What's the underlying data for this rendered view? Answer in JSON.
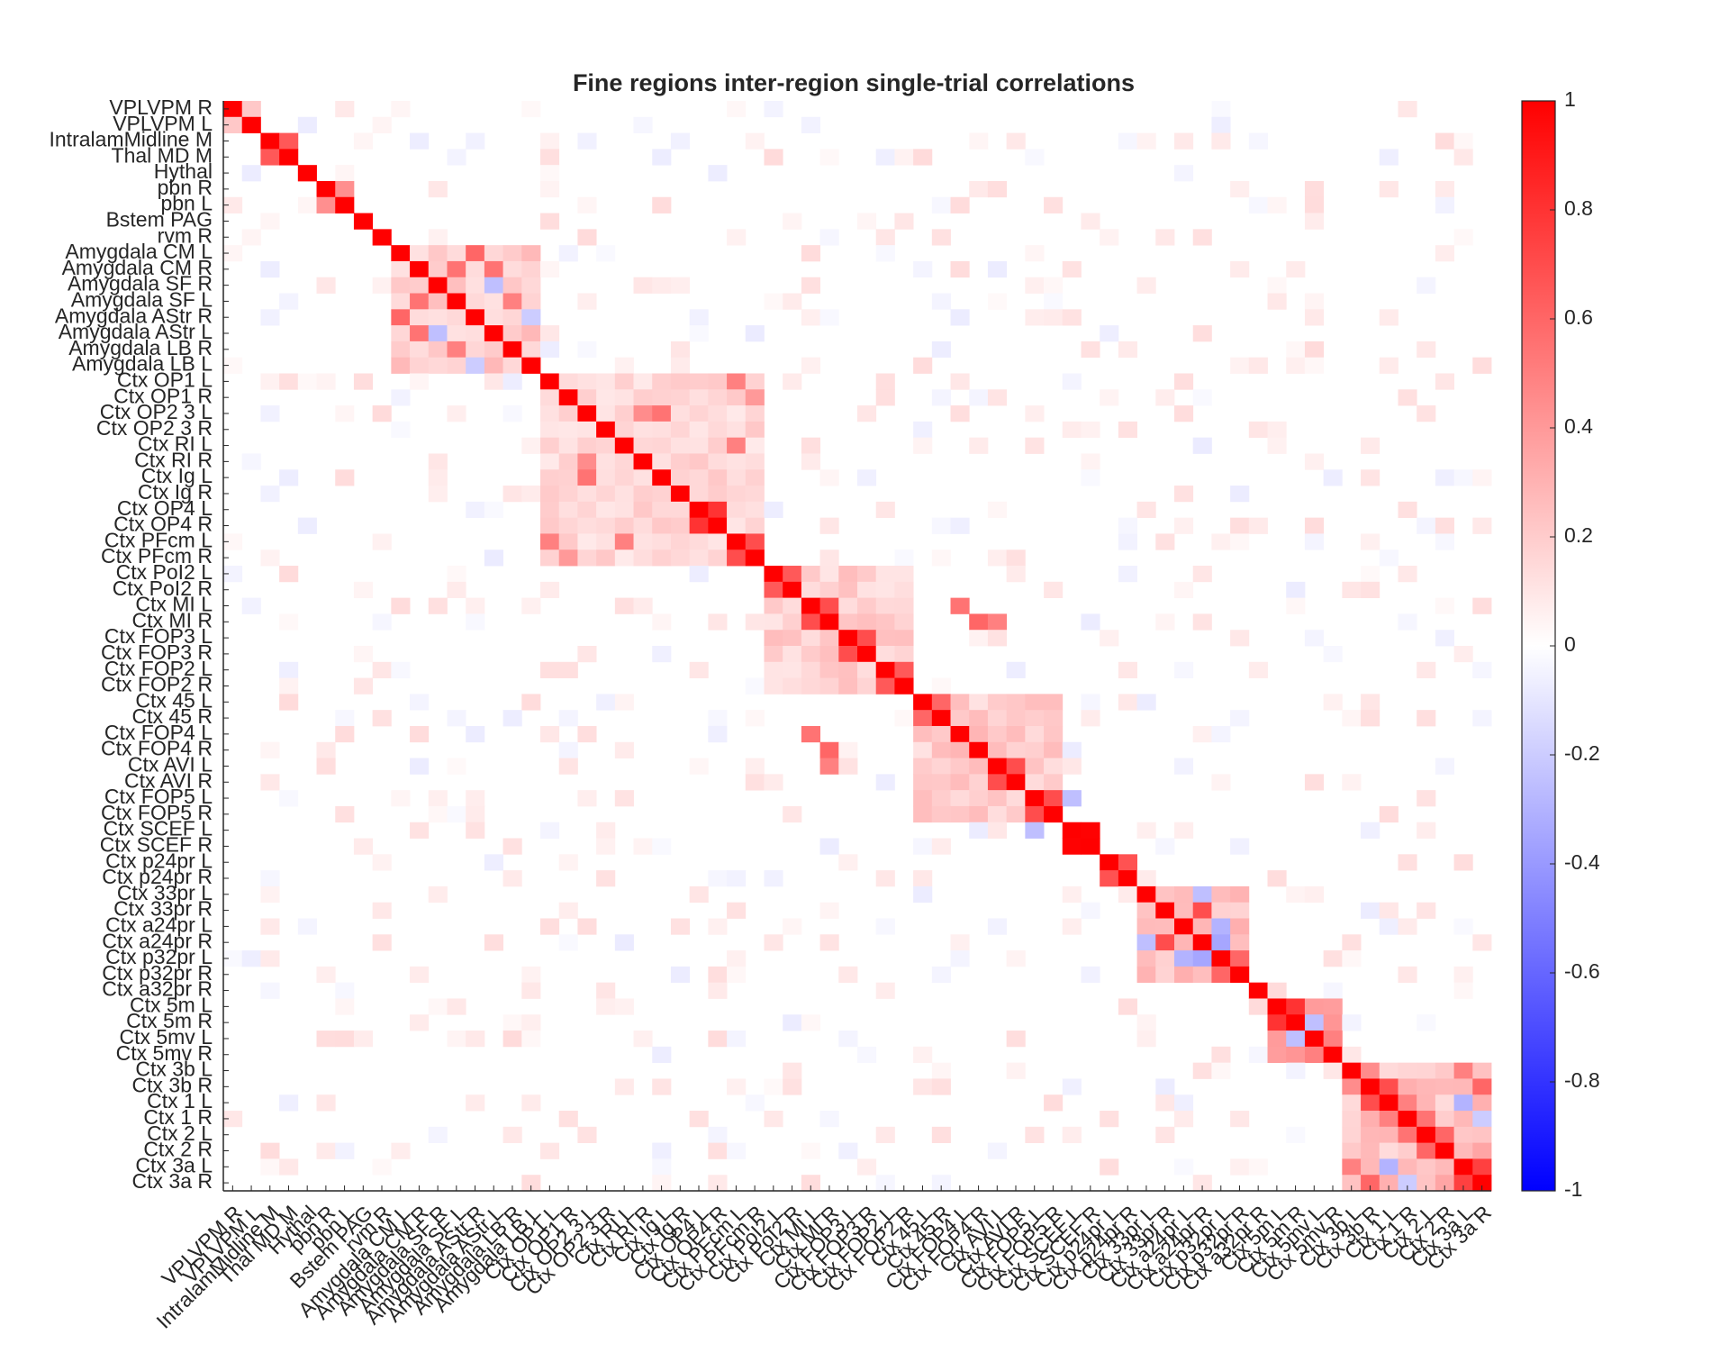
{
  "chart_data": {
    "type": "heatmap",
    "title": "Fine regions inter-region single-trial correlations",
    "xlabel": "",
    "ylabel": "",
    "labels": [
      "VPLVPM R",
      "VPLVPM L",
      "IntralamMidline M",
      "Thal MD M",
      "Hythal",
      "pbn R",
      "pbn L",
      "Bstem PAG",
      "rvm R",
      "Amygdala CM  L",
      "Amygdala CM  R",
      "Amygdala SF  R",
      "Amygdala SF  L",
      "Amygdala AStr  R",
      "Amygdala AStr  L",
      "Amygdala LB  R",
      "Amygdala LB  L",
      "Ctx OP1 L",
      "Ctx OP1 R",
      "Ctx OP2 3 L",
      "Ctx OP2 3 R",
      "Ctx RI L",
      "Ctx RI R",
      "Ctx Ig L",
      "Ctx Ig R",
      "Ctx OP4 L",
      "Ctx OP4 R",
      "Ctx PFcm L",
      "Ctx PFcm R",
      "Ctx PoI2 L",
      "Ctx PoI2 R",
      "Ctx MI L",
      "Ctx MI R",
      "Ctx FOP3 L",
      "Ctx FOP3 R",
      "Ctx FOP2 L",
      "Ctx FOP2 R",
      "Ctx 45 L",
      "Ctx 45 R",
      "Ctx FOP4 L",
      "Ctx FOP4 R",
      "Ctx AVI L",
      "Ctx AVI R",
      "Ctx FOP5 L",
      "Ctx FOP5 R",
      "Ctx SCEF L",
      "Ctx SCEF R",
      "Ctx p24pr L",
      "Ctx p24pr R",
      "Ctx 33pr L",
      "Ctx 33pr R",
      "Ctx a24pr L",
      "Ctx a24pr R",
      "Ctx p32pr L",
      "Ctx p32pr R",
      "Ctx a32pr R",
      "Ctx 5m L",
      "Ctx 5m R",
      "Ctx 5mv L",
      "Ctx 5mv R",
      "Ctx 3b L",
      "Ctx 3b R",
      "Ctx 1 L",
      "Ctx 1 R",
      "Ctx 2 L",
      "Ctx 2 R",
      "Ctx 3a L",
      "Ctx 3a R"
    ],
    "clim": [
      -1,
      1
    ],
    "colorbar_ticks": [
      "1",
      "0.8",
      "0.6",
      "0.4",
      "0.2",
      "0",
      "-0.2",
      "-0.4",
      "-0.6",
      "-0.8",
      "-1"
    ],
    "colormap": {
      "low": "#0000ff",
      "mid": "#ffffff",
      "high": "#ff0000"
    },
    "diagonal": 1,
    "blocks": [
      {
        "rows": [
          0,
          1
        ],
        "value": 0.3
      },
      {
        "rows": [
          2,
          3
        ],
        "value": 0.8
      },
      {
        "rows": [
          5,
          6
        ],
        "value": 0.7
      },
      {
        "rows": [
          9,
          16
        ],
        "value": 0.2
      },
      {
        "rows": [
          17,
          28
        ],
        "value": 0.15
      },
      {
        "rows": [
          29,
          36
        ],
        "value": 0.18
      },
      {
        "rows": [
          37,
          44
        ],
        "value": 0.2
      },
      {
        "rows": [
          45,
          46
        ],
        "value": 0.85
      },
      {
        "rows": [
          47,
          48
        ],
        "value": 0.8
      },
      {
        "rows": [
          49,
          54
        ],
        "value": 0.25
      },
      {
        "rows": [
          56,
          59
        ],
        "value": 0.35
      },
      {
        "rows": [
          60,
          67
        ],
        "value": 0.25
      }
    ],
    "cells": [
      {
        "row": 9,
        "col": 13,
        "value": 0.6
      },
      {
        "row": 10,
        "col": 12,
        "value": 0.55
      },
      {
        "row": 10,
        "col": 14,
        "value": 0.55
      },
      {
        "row": 11,
        "col": 14,
        "value": -0.25
      },
      {
        "row": 12,
        "col": 15,
        "value": 0.5
      },
      {
        "row": 13,
        "col": 16,
        "value": -0.2
      },
      {
        "row": 17,
        "col": 27,
        "value": 0.5
      },
      {
        "row": 18,
        "col": 28,
        "value": 0.4
      },
      {
        "row": 19,
        "col": 22,
        "value": 0.45
      },
      {
        "row": 21,
        "col": 27,
        "value": 0.5
      },
      {
        "row": 23,
        "col": 19,
        "value": 0.55
      },
      {
        "row": 25,
        "col": 26,
        "value": 0.8
      },
      {
        "row": 27,
        "col": 28,
        "value": 0.7
      },
      {
        "row": 29,
        "col": 30,
        "value": 0.65
      },
      {
        "row": 31,
        "col": 32,
        "value": 0.7
      },
      {
        "row": 32,
        "col": 41,
        "value": 0.5
      },
      {
        "row": 33,
        "col": 34,
        "value": 0.7
      },
      {
        "row": 35,
        "col": 36,
        "value": 0.65
      },
      {
        "row": 37,
        "col": 38,
        "value": 0.6
      },
      {
        "row": 39,
        "col": 31,
        "value": 0.55
      },
      {
        "row": 40,
        "col": 32,
        "value": 0.6
      },
      {
        "row": 41,
        "col": 42,
        "value": 0.7
      },
      {
        "row": 43,
        "col": 44,
        "value": 0.7
      },
      {
        "row": 45,
        "col": 43,
        "value": -0.25
      },
      {
        "row": 49,
        "col": 52,
        "value": -0.25
      },
      {
        "row": 50,
        "col": 52,
        "value": 0.7
      },
      {
        "row": 51,
        "col": 53,
        "value": 0.6
      },
      {
        "row": 52,
        "col": 53,
        "value": -0.35
      },
      {
        "row": 53,
        "col": 51,
        "value": -0.3
      },
      {
        "row": 53,
        "col": 54,
        "value": 0.6
      },
      {
        "row": 56,
        "col": 57,
        "value": 0.8
      },
      {
        "row": 57,
        "col": 58,
        "value": -0.25
      },
      {
        "row": 58,
        "col": 59,
        "value": 0.5
      },
      {
        "row": 60,
        "col": 61,
        "value": 0.45
      },
      {
        "row": 61,
        "col": 62,
        "value": 0.7
      },
      {
        "row": 62,
        "col": 63,
        "value": 0.5
      },
      {
        "row": 63,
        "col": 64,
        "value": 0.55
      },
      {
        "row": 64,
        "col": 65,
        "value": 0.6
      },
      {
        "row": 66,
        "col": 67,
        "value": 0.75
      },
      {
        "row": 61,
        "col": 67,
        "value": 0.6
      },
      {
        "row": 62,
        "col": 66,
        "value": -0.3
      },
      {
        "row": 60,
        "col": 66,
        "value": 0.5
      },
      {
        "row": 63,
        "col": 67,
        "value": -0.2
      }
    ]
  }
}
